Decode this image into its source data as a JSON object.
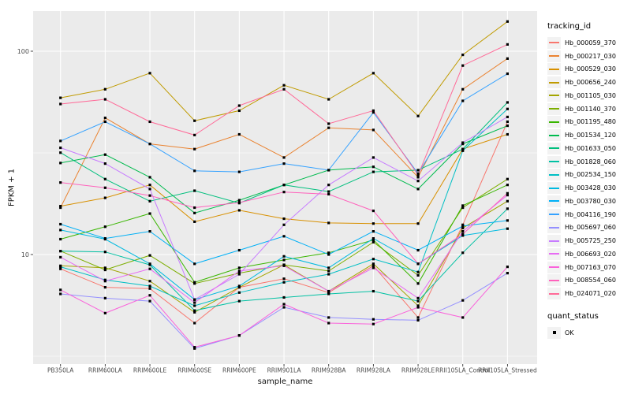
{
  "chart": {
    "y_axis": {
      "label": "FPKM + 1",
      "tick_labels": [
        "100",
        "10"
      ]
    },
    "x_axis": {
      "label": "sample_name"
    },
    "legend": {
      "tracking_title": "tracking_id",
      "quant_title": "quant_status",
      "quant_label": "OK"
    }
  },
  "chart_data": {
    "type": "line",
    "title": "",
    "xlabel": "sample_name",
    "ylabel": "FPKM + 1",
    "x_scale": "categorical",
    "y_scale": "log10",
    "ylim": [
      2.9,
      157
    ],
    "y_ticks": [
      {
        "value": 100,
        "label": "100"
      },
      {
        "value": 10,
        "label": "10"
      }
    ],
    "y_minor_gridlines": [
      3.162,
      31.623
    ],
    "grid": "white major and minor on gray panel",
    "legend_position": "right",
    "panel_background": "#EBEBEB",
    "gridline_color": "#FFFFFF",
    "tick_text_color": "#4D4D4D",
    "marker": {
      "shape": "filled-square",
      "color": "#000000",
      "legend_label": "OK",
      "legend_group": "quant_status"
    },
    "categories": [
      "PB350LA",
      "RRIM600LA",
      "RRIM600LE",
      "RRIM600SE",
      "RRIM600PE",
      "RRIM901LA",
      "RRIM928BA",
      "RRIM928LA",
      "RRIM928LE",
      "RRII105LA_Control",
      "RRII105LA_Stressed"
    ],
    "series": [
      {
        "name": "Hb_000059_370",
        "color": "#F8766D",
        "values": [
          8.5,
          6.9,
          6.8,
          4.6,
          6.9,
          7.6,
          6.5,
          8.8,
          4.9,
          14.0,
          45.0
        ]
      },
      {
        "name": "Hb_000217_030",
        "color": "#EA8331",
        "values": [
          17.0,
          47.0,
          35.0,
          33.0,
          39.0,
          30.0,
          42.0,
          41.0,
          24.0,
          65.0,
          92.0
        ]
      },
      {
        "name": "Hb_000529_030",
        "color": "#D89000",
        "values": [
          17.3,
          19.0,
          22.0,
          14.5,
          16.5,
          15.0,
          14.3,
          14.2,
          14.2,
          33.0,
          39.0
        ]
      },
      {
        "name": "Hb_000656_240",
        "color": "#C09B00",
        "values": [
          59.0,
          65.0,
          78.0,
          45.5,
          51.0,
          68.0,
          58.0,
          78.0,
          48.0,
          96.0,
          140.0
        ]
      },
      {
        "name": "Hb_001105_030",
        "color": "#A3A500",
        "values": [
          8.8,
          8.6,
          7.4,
          5.2,
          6.9,
          8.9,
          6.6,
          9.0,
          5.6,
          13.5,
          18.3
        ]
      },
      {
        "name": "Hb_001140_370",
        "color": "#7CAE00",
        "values": [
          10.4,
          8.4,
          9.9,
          7.2,
          8.1,
          8.9,
          8.3,
          11.5,
          7.9,
          17.0,
          23.5
        ]
      },
      {
        "name": "Hb_001195_480",
        "color": "#39B600",
        "values": [
          11.9,
          13.7,
          15.9,
          7.3,
          8.6,
          9.4,
          10.2,
          11.8,
          7.2,
          17.4,
          22.0
        ]
      },
      {
        "name": "Hb_001534_120",
        "color": "#00BB4E",
        "values": [
          28.2,
          31.0,
          24.0,
          16.0,
          18.5,
          22.0,
          26.0,
          27.0,
          21.0,
          35.0,
          43.0
        ]
      },
      {
        "name": "Hb_001633_050",
        "color": "#00BF7D",
        "values": [
          31.7,
          23.5,
          18.3,
          20.6,
          17.9,
          22.0,
          20.4,
          25.5,
          26.0,
          33.0,
          56.0
        ]
      },
      {
        "name": "Hb_001828_060",
        "color": "#00C1A3",
        "values": [
          10.4,
          10.3,
          8.9,
          5.3,
          5.9,
          6.15,
          6.4,
          6.6,
          5.9,
          10.2,
          16.8
        ]
      },
      {
        "name": "Hb_002534_150",
        "color": "#00BFC4",
        "values": [
          8.7,
          7.5,
          7.0,
          5.6,
          6.5,
          7.3,
          8.0,
          9.5,
          8.2,
          32.4,
          52.0
        ]
      },
      {
        "name": "Hb_003428_030",
        "color": "#00BAE0",
        "values": [
          13.2,
          11.9,
          9.0,
          6.0,
          7.0,
          9.8,
          8.6,
          12.0,
          9.0,
          12.4,
          13.4
        ]
      },
      {
        "name": "Hb_003780_030",
        "color": "#00B0F6",
        "values": [
          14.1,
          12.0,
          13.0,
          9.0,
          10.5,
          12.3,
          10.0,
          13.0,
          10.5,
          13.8,
          14.7
        ]
      },
      {
        "name": "Hb_004116_190",
        "color": "#35A2FF",
        "values": [
          36.2,
          45.0,
          35.0,
          25.8,
          25.5,
          28.0,
          26.0,
          50.0,
          25.0,
          57.0,
          77.5
        ]
      },
      {
        "name": "Hb_005697_060",
        "color": "#9590FF",
        "values": [
          6.4,
          6.1,
          5.9,
          3.45,
          4.0,
          5.5,
          4.9,
          4.8,
          4.75,
          5.95,
          8.1
        ]
      },
      {
        "name": "Hb_005725_250",
        "color": "#C77CFF",
        "values": [
          33.5,
          28.0,
          21.0,
          6.0,
          8.0,
          14.0,
          22.0,
          30.0,
          23.0,
          35.5,
          47.5
        ]
      },
      {
        "name": "Hb_006693_020",
        "color": "#E76BF3",
        "values": [
          9.7,
          7.4,
          8.5,
          5.8,
          8.3,
          8.8,
          6.6,
          8.6,
          6.1,
          13.0,
          19.6
        ]
      },
      {
        "name": "Hb_007163_070",
        "color": "#FA62DB",
        "values": [
          6.7,
          5.15,
          6.3,
          3.5,
          4.0,
          5.7,
          4.6,
          4.55,
          5.5,
          4.9,
          8.7
        ]
      },
      {
        "name": "Hb_008554_060",
        "color": "#FF62BC",
        "values": [
          22.6,
          21.3,
          19.5,
          17.0,
          18.0,
          20.3,
          19.8,
          16.4,
          9.0,
          12.6,
          20.0
        ]
      },
      {
        "name": "Hb_024071_020",
        "color": "#FF6A98",
        "values": [
          55.0,
          58.0,
          45.0,
          38.7,
          54.0,
          65.0,
          44.0,
          51.0,
          24.6,
          85.0,
          108.0
        ]
      }
    ]
  }
}
